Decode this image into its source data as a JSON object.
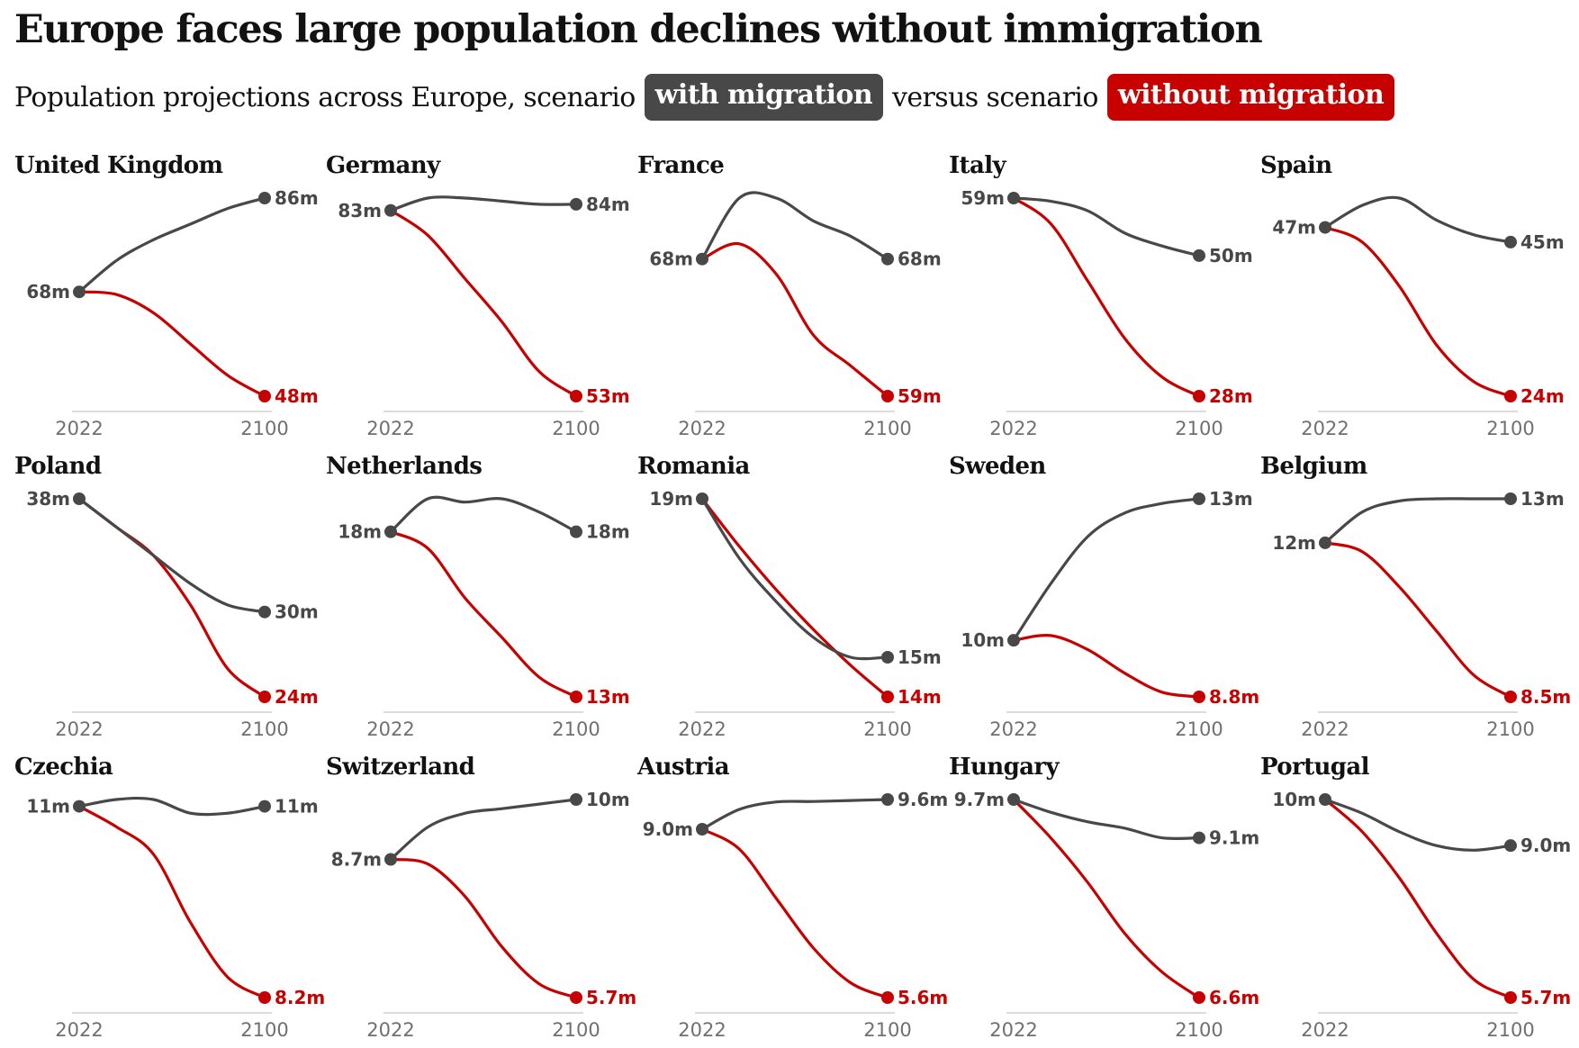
{
  "title": "Europe faces large population declines without immigration",
  "subtitle": {
    "before": "Population projections across Europe, scenario",
    "pill_with": "with migration",
    "middle": "versus scenario",
    "pill_without": "without migration"
  },
  "colors": {
    "with_migration": "#484848",
    "without_migration": "#c70000",
    "axis": "#dcdcdc",
    "tick_text": "#707070"
  },
  "chart_data": {
    "type": "line",
    "x_start": 2022,
    "x_end": 2100,
    "tick_labels": [
      "2022",
      "2100"
    ],
    "series_labels": [
      "with migration",
      "without migration"
    ],
    "panels": [
      {
        "country": "United Kingdom",
        "start": 68,
        "start_label": "68m",
        "with": [
          68,
          74,
          78,
          81,
          84,
          86
        ],
        "with_label": "86m",
        "without": [
          68,
          67.5,
          64,
          58,
          52,
          48
        ],
        "without_label": "48m"
      },
      {
        "country": "Germany",
        "start": 83,
        "start_label": "83m",
        "with": [
          83,
          85,
          85,
          84.5,
          84,
          84
        ],
        "with_label": "84m",
        "without": [
          83,
          79,
          72,
          65,
          57,
          53
        ],
        "without_label": "53m"
      },
      {
        "country": "France",
        "start": 68,
        "start_label": "68m",
        "with": [
          68,
          72,
          72,
          70.5,
          69.5,
          68
        ],
        "with_label": "68m",
        "without": [
          68,
          69,
          67,
          63,
          61,
          59
        ],
        "without_label": "59m"
      },
      {
        "country": "Italy",
        "start": 59,
        "start_label": "59m",
        "with": [
          59,
          58.5,
          57,
          53.5,
          51.5,
          50
        ],
        "with_label": "50m",
        "without": [
          59,
          55,
          46,
          37,
          31,
          28
        ],
        "without_label": "28m"
      },
      {
        "country": "Spain",
        "start": 47,
        "start_label": "47m",
        "with": [
          47,
          50,
          51,
          48,
          46,
          45
        ],
        "with_label": "45m",
        "without": [
          47,
          45,
          39,
          31,
          26,
          24
        ],
        "without_label": "24m"
      },
      {
        "country": "Poland",
        "start": 38,
        "start_label": "38m",
        "with": [
          38,
          36,
          34,
          32,
          30.5,
          30
        ],
        "with_label": "30m",
        "without": [
          38,
          36,
          34,
          30.5,
          26,
          24
        ],
        "without_label": "24m"
      },
      {
        "country": "Netherlands",
        "start": 18,
        "start_label": "18m",
        "with": [
          18,
          19,
          18.9,
          19,
          18.6,
          18
        ],
        "with_label": "18m",
        "without": [
          18,
          17.5,
          16,
          14.8,
          13.6,
          13
        ],
        "without_label": "13m"
      },
      {
        "country": "Romania",
        "start": 19,
        "start_label": "19m",
        "with": [
          19,
          17.5,
          16.4,
          15.5,
          15,
          15
        ],
        "with_label": "15m",
        "without": [
          19,
          17.8,
          16.7,
          15.7,
          14.8,
          14
        ],
        "without_label": "14m"
      },
      {
        "country": "Sweden",
        "start": 10,
        "start_label": "10m",
        "with": [
          10,
          11.2,
          12.2,
          12.7,
          12.9,
          13
        ],
        "with_label": "13m",
        "without": [
          10,
          10.1,
          9.8,
          9.3,
          8.9,
          8.8
        ],
        "without_label": "8.8m"
      },
      {
        "country": "Belgium",
        "start": 12,
        "start_label": "12m",
        "with": [
          12,
          12.7,
          12.95,
          13,
          13,
          13
        ],
        "with_label": "13m",
        "without": [
          12,
          11.8,
          11,
          10,
          9,
          8.5
        ],
        "without_label": "8.5m"
      },
      {
        "country": "Czechia",
        "start": 11,
        "start_label": "11m",
        "with": [
          11,
          11.1,
          11.1,
          10.9,
          10.9,
          11
        ],
        "with_label": "11m",
        "without": [
          11,
          10.7,
          10.3,
          9.3,
          8.5,
          8.2
        ],
        "without_label": "8.2m"
      },
      {
        "country": "Switzerland",
        "start": 8.7,
        "start_label": "8.7m",
        "with": [
          8.7,
          9.4,
          9.7,
          9.8,
          9.9,
          10
        ],
        "with_label": "10m",
        "without": [
          8.7,
          8.6,
          7.9,
          6.8,
          6,
          5.7
        ],
        "without_label": "5.7m"
      },
      {
        "country": "Austria",
        "start": 9.0,
        "start_label": "9.0m",
        "with": [
          9.0,
          9.4,
          9.55,
          9.56,
          9.58,
          9.6
        ],
        "with_label": "9.6m",
        "without": [
          9.0,
          8.6,
          7.6,
          6.6,
          5.9,
          5.6
        ],
        "without_label": "5.6m"
      },
      {
        "country": "Hungary",
        "start": 9.7,
        "start_label": "9.7m",
        "with": [
          9.7,
          9.5,
          9.35,
          9.25,
          9.1,
          9.1
        ],
        "with_label": "9.1m",
        "without": [
          9.7,
          9.1,
          8.4,
          7.6,
          7,
          6.6
        ],
        "without_label": "6.6m"
      },
      {
        "country": "Portugal",
        "start": 10,
        "start_label": "10m",
        "with": [
          10,
          9.7,
          9.3,
          9.0,
          8.9,
          9.0
        ],
        "with_label": "9.0m",
        "without": [
          10,
          9.3,
          8.3,
          7.1,
          6.1,
          5.7
        ],
        "without_label": "5.7m"
      }
    ]
  }
}
